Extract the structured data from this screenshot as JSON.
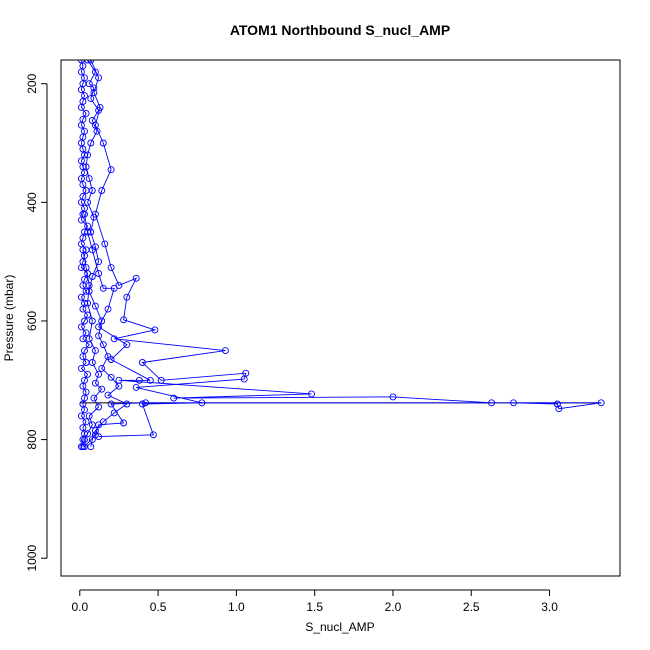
{
  "chart_data": {
    "type": "line",
    "title": "ATOM1 Northbound S_nucl_AMP",
    "xlabel": "S_nucl_AMP",
    "ylabel": "Pressure (mbar)",
    "xlim": [
      -0.12,
      3.45
    ],
    "ylim": [
      1030,
      160
    ],
    "y_inverted": true,
    "grid": false,
    "legend": "none",
    "x_ticks": [
      "0.0",
      "0.5",
      "1.0",
      "1.5",
      "2.0",
      "2.5",
      "3.0"
    ],
    "x_tick_values": [
      0,
      0.5,
      1.0,
      1.5,
      2.0,
      2.5,
      3.0
    ],
    "y_ticks": [
      "200",
      "400",
      "600",
      "800",
      "1000"
    ],
    "y_tick_values": [
      200,
      400,
      600,
      800,
      1000
    ],
    "reference_line": {
      "pressure": 738,
      "x_from": 0.0,
      "x_to": 3.33,
      "color": "#000000"
    },
    "series": [
      {
        "marker": "open-circle",
        "color": "#0000ff",
        "points": [
          [
            0.01,
            160
          ],
          [
            0.02,
            170
          ],
          [
            0.01,
            180
          ],
          [
            0.03,
            190
          ],
          [
            0.02,
            200
          ],
          [
            0.01,
            210
          ],
          [
            0.03,
            220
          ],
          [
            0.02,
            230
          ],
          [
            0.01,
            240
          ],
          [
            0.04,
            250
          ],
          [
            0.02,
            260
          ],
          [
            0.01,
            270
          ],
          [
            0.03,
            280
          ],
          [
            0.02,
            290
          ],
          [
            0.01,
            300
          ],
          [
            0.02,
            310
          ],
          [
            0.03,
            320
          ],
          [
            0.01,
            330
          ],
          [
            0.02,
            340
          ],
          [
            0.03,
            350
          ],
          [
            0.01,
            360
          ],
          [
            0.02,
            370
          ],
          [
            0.04,
            380
          ],
          [
            0.02,
            390
          ],
          [
            0.01,
            400
          ],
          [
            0.03,
            410
          ],
          [
            0.02,
            420
          ],
          [
            0.01,
            430
          ],
          [
            0.05,
            440
          ],
          [
            0.03,
            450
          ],
          [
            0.02,
            460
          ],
          [
            0.01,
            470
          ],
          [
            0.04,
            480
          ],
          [
            0.03,
            490
          ],
          [
            0.02,
            500
          ],
          [
            0.01,
            510
          ],
          [
            0.05,
            520
          ],
          [
            0.03,
            530
          ],
          [
            0.02,
            540
          ],
          [
            0.04,
            550
          ],
          [
            0.01,
            560
          ],
          [
            0.03,
            570
          ],
          [
            0.02,
            580
          ],
          [
            0.05,
            590
          ],
          [
            0.03,
            600
          ],
          [
            0.01,
            610
          ],
          [
            0.04,
            620
          ],
          [
            0.02,
            630
          ],
          [
            0.06,
            640
          ],
          [
            0.03,
            650
          ],
          [
            0.02,
            660
          ],
          [
            0.04,
            670
          ],
          [
            0.01,
            680
          ],
          [
            0.05,
            690
          ],
          [
            0.03,
            700
          ],
          [
            0.02,
            710
          ],
          [
            0.04,
            720
          ],
          [
            0.03,
            730
          ],
          [
            0.02,
            740
          ],
          [
            0.03,
            750
          ],
          [
            0.01,
            760
          ],
          [
            0.04,
            770
          ],
          [
            0.02,
            780
          ],
          [
            0.03,
            790
          ],
          [
            0.02,
            800
          ],
          [
            0.01,
            812
          ]
        ]
      },
      {
        "marker": "open-circle",
        "color": "#0000ff",
        "points": [
          [
            0.05,
            160
          ],
          [
            0.1,
            180
          ],
          [
            0.06,
            200
          ],
          [
            0.09,
            207
          ],
          [
            0.07,
            225
          ],
          [
            0.12,
            245
          ],
          [
            0.08,
            262
          ],
          [
            0.11,
            280
          ],
          [
            0.07,
            300
          ],
          [
            0.05,
            320
          ],
          [
            0.04,
            340
          ],
          [
            0.06,
            360
          ],
          [
            0.08,
            380
          ],
          [
            0.05,
            400
          ],
          [
            0.09,
            425
          ],
          [
            0.07,
            450
          ],
          [
            0.1,
            475
          ],
          [
            0.12,
            500
          ],
          [
            0.08,
            525
          ],
          [
            0.06,
            550
          ],
          [
            0.1,
            575
          ],
          [
            0.14,
            600
          ],
          [
            0.12,
            625
          ],
          [
            0.15,
            640
          ],
          [
            0.18,
            660
          ],
          [
            0.14,
            680
          ],
          [
            0.2,
            695
          ],
          [
            0.25,
            710
          ],
          [
            0.18,
            725
          ],
          [
            0.3,
            740
          ],
          [
            0.22,
            755
          ],
          [
            0.15,
            770
          ],
          [
            0.1,
            785
          ],
          [
            0.08,
            800
          ],
          [
            0.07,
            812
          ]
        ]
      },
      {
        "marker": "open-circle",
        "color": "#0000ff",
        "points": [
          [
            0.07,
            160
          ],
          [
            0.12,
            190
          ],
          [
            0.09,
            215
          ],
          [
            0.13,
            240
          ],
          [
            0.1,
            270
          ],
          [
            0.15,
            300
          ],
          [
            0.2,
            345
          ],
          [
            0.14,
            380
          ],
          [
            0.1,
            420
          ],
          [
            0.16,
            470
          ],
          [
            0.2,
            510
          ],
          [
            0.25,
            540
          ],
          [
            0.36,
            528
          ],
          [
            0.3,
            560
          ],
          [
            0.28,
            598
          ],
          [
            0.48,
            615
          ],
          [
            0.22,
            630
          ],
          [
            0.93,
            650
          ],
          [
            0.4,
            670
          ],
          [
            0.52,
            700
          ],
          [
            1.06,
            688
          ],
          [
            1.05,
            698
          ],
          [
            0.36,
            712
          ],
          [
            0.78,
            738
          ],
          [
            0.4,
            740
          ],
          [
            0.47,
            792
          ],
          [
            0.12,
            795
          ]
        ]
      },
      {
        "marker": "open-circle",
        "color": "#0000ff",
        "points": [
          [
            0.03,
            420
          ],
          [
            0.05,
            450
          ],
          [
            0.08,
            480
          ],
          [
            0.12,
            520
          ],
          [
            0.15,
            545
          ],
          [
            0.22,
            545
          ],
          [
            0.18,
            580
          ],
          [
            0.12,
            610
          ],
          [
            0.3,
            640
          ],
          [
            0.2,
            665
          ],
          [
            0.45,
            700
          ],
          [
            0.38,
            700
          ],
          [
            0.25,
            700
          ],
          [
            1.48,
            723
          ],
          [
            0.6,
            730
          ],
          [
            2.0,
            728
          ],
          [
            2.63,
            738
          ],
          [
            2.77,
            738
          ],
          [
            3.05,
            740
          ],
          [
            3.06,
            748
          ],
          [
            3.33,
            738
          ],
          [
            0.42,
            738
          ],
          [
            0.2,
            740
          ],
          [
            0.28,
            772
          ],
          [
            0.12,
            775
          ],
          [
            0.1,
            792
          ],
          [
            0.03,
            812
          ]
        ]
      },
      {
        "marker": "open-circle",
        "color": "#0000ff",
        "points": [
          [
            0.02,
            480
          ],
          [
            0.04,
            510
          ],
          [
            0.06,
            540
          ],
          [
            0.05,
            570
          ],
          [
            0.08,
            600
          ],
          [
            0.06,
            630
          ],
          [
            0.1,
            650
          ],
          [
            0.08,
            670
          ],
          [
            0.12,
            690
          ],
          [
            0.1,
            705
          ],
          [
            0.14,
            715
          ],
          [
            0.09,
            730
          ],
          [
            0.12,
            745
          ],
          [
            0.06,
            760
          ],
          [
            0.08,
            775
          ],
          [
            0.05,
            790
          ],
          [
            0.03,
            800
          ],
          [
            0.02,
            812
          ]
        ]
      }
    ]
  }
}
